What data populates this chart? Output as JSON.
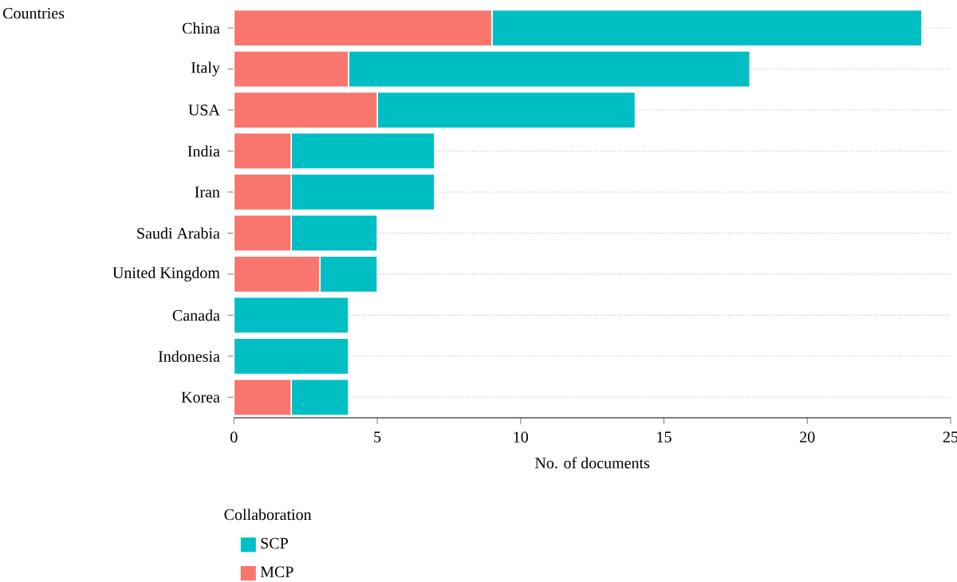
{
  "chart_data": {
    "type": "bar",
    "orientation": "horizontal",
    "stacked": true,
    "ylabel": "Countries",
    "xlabel": "No. of documents",
    "legend_title": "Collaboration",
    "categories": [
      "China",
      "Italy",
      "USA",
      "India",
      "Iran",
      "Saudi Arabia",
      "United Kingdom",
      "Canada",
      "Indonesia",
      "Korea"
    ],
    "series": [
      {
        "name": "MCP",
        "color": "#f8766d",
        "values": [
          9,
          4,
          5,
          2,
          2,
          2,
          3,
          0,
          0,
          2
        ]
      },
      {
        "name": "SCP",
        "color": "#00bfc4",
        "values": [
          15,
          14,
          9,
          5,
          5,
          3,
          2,
          4,
          4,
          2
        ]
      }
    ],
    "xlim": [
      0,
      25
    ],
    "xticks": [
      0,
      5,
      10,
      15,
      20,
      25
    ],
    "grid": "y",
    "legend": "bottom left"
  }
}
